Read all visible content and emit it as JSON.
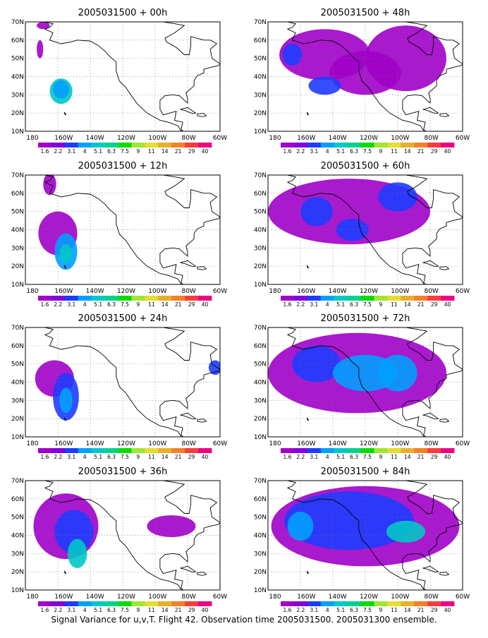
{
  "panels": [
    {
      "title": "2005031500 + 00h",
      "intensity": 0.35,
      "colors": [
        [
          1,
          1,
          2,
          0,
          0,
          0,
          0,
          0,
          0,
          0,
          0,
          0,
          0,
          0,
          0,
          0,
          0,
          0,
          0,
          0,
          0,
          0,
          0,
          0,
          0,
          0,
          0,
          0
        ],
        [
          0,
          1,
          2,
          0,
          0,
          0,
          0,
          0,
          0,
          0,
          0,
          0,
          0,
          0,
          0,
          0,
          0,
          0,
          0,
          0,
          0,
          0,
          0,
          0,
          0,
          0,
          0,
          0
        ],
        [
          1,
          1,
          1,
          0,
          0,
          0,
          0,
          0,
          0,
          0,
          0,
          0,
          0,
          0,
          0,
          0,
          0,
          0,
          0,
          0,
          0,
          0,
          0,
          0,
          0,
          0,
          0,
          0
        ],
        [
          1,
          1,
          0,
          0,
          0,
          0,
          0,
          0,
          0,
          0,
          0,
          0,
          0,
          0,
          0,
          0,
          0,
          0,
          0,
          0,
          0,
          0,
          0,
          0,
          0,
          0,
          0,
          0
        ]
      ]
    },
    {
      "title": "2005031500 + 48h",
      "intensity": 0.6
    },
    {
      "title": "2005031500 + 12h",
      "intensity": 0.45
    },
    {
      "title": "2005031500 + 60h",
      "intensity": 0.7
    },
    {
      "title": "2005031500 + 24h",
      "intensity": 0.55
    },
    {
      "title": "2005031500 + 72h",
      "intensity": 0.8
    },
    {
      "title": "2005031500 + 36h",
      "intensity": 0.65
    },
    {
      "title": "2005031500 + 84h",
      "intensity": 0.9
    }
  ],
  "axes": {
    "lat_labels": [
      "70N",
      "60N",
      "50N",
      "40N",
      "30N",
      "20N",
      "10N"
    ],
    "lon_labels": [
      "180",
      "160W",
      "140W",
      "120W",
      "100W",
      "80W",
      "60W"
    ]
  },
  "colorbar": {
    "labels": [
      "1.6",
      "2.2",
      "3.1",
      "4",
      "5.1",
      "6.3",
      "7.5",
      "9",
      "11",
      "14",
      "21",
      "29",
      "40"
    ],
    "colors": [
      "#a000c8",
      "#8200dc",
      "#1e3cff",
      "#00a0ff",
      "#00c8c8",
      "#00d28c",
      "#00dc00",
      "#a0e632",
      "#e6dc32",
      "#e6af2d",
      "#f08228",
      "#fa3c3c",
      "#f00082"
    ]
  },
  "caption": "Signal Variance for u,v,T. Flight 42. Observation time 2005031500. 2005031300 ensemble."
}
